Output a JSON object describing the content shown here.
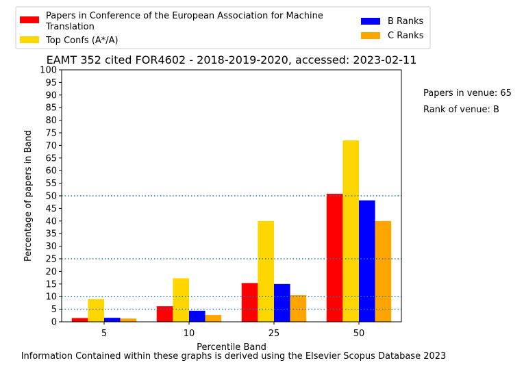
{
  "chart_data": {
    "type": "bar",
    "title": "EAMT 352 cited FOR4602 - 2018-2019-2020, accessed: 2023-02-11",
    "xlabel": "Percentile Band",
    "ylabel": "Percentage of papers in Band",
    "categories": [
      "5",
      "10",
      "25",
      "50"
    ],
    "ylim": [
      0,
      100
    ],
    "yticks": [
      "0",
      "5",
      "10",
      "15",
      "20",
      "25",
      "30",
      "35",
      "40",
      "45",
      "50",
      "55",
      "60",
      "65",
      "70",
      "75",
      "80",
      "85",
      "90",
      "95",
      "100"
    ],
    "reference_lines": [
      5,
      10,
      25,
      50
    ],
    "legend_position": "top",
    "series": [
      {
        "name": "Papers in Conference of the European Association for Machine Translation",
        "color": "#ff0000",
        "values": [
          1.5,
          6.2,
          15.4,
          50.8
        ]
      },
      {
        "name": "Top Confs (A*/A)",
        "color": "#ffd700",
        "values": [
          9.0,
          17.3,
          40.0,
          72.0
        ]
      },
      {
        "name": "B Ranks",
        "color": "#0000ff",
        "values": [
          1.6,
          4.4,
          15.0,
          48.2
        ]
      },
      {
        "name": "C Ranks",
        "color": "#ffa500",
        "values": [
          1.3,
          2.7,
          10.6,
          40.0
        ]
      }
    ]
  },
  "side_notes": {
    "papers_in_venue": "Papers in venue: 65",
    "rank_of_venue": "Rank of venue: B"
  },
  "footer": "Information Contained within these graphs is derived using the Elsevier Scopus Database 2023"
}
